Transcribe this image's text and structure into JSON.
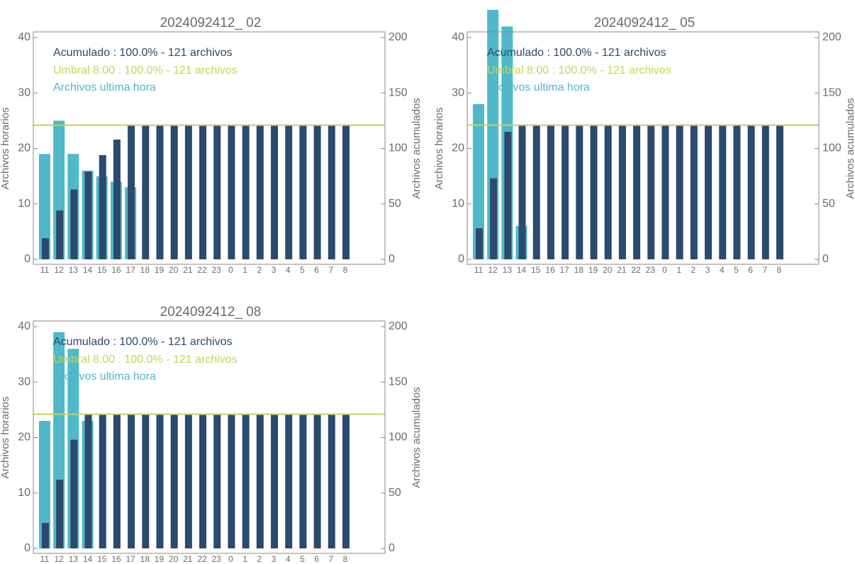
{
  "chart_data": [
    {
      "type": "bar",
      "title": "2024092412_ 02",
      "categories": [
        "11",
        "12",
        "13",
        "14",
        "15",
        "16",
        "17",
        "18",
        "19",
        "20",
        "21",
        "22",
        "23",
        "0",
        "1",
        "2",
        "3",
        "4",
        "5",
        "6",
        "7",
        "8"
      ],
      "series": [
        {
          "name": "Archivos ultima hora",
          "color": "#4fb8c9",
          "values": [
            19,
            25,
            19,
            16,
            15,
            14,
            13,
            0,
            0,
            0,
            0,
            0,
            0,
            0,
            0,
            0,
            0,
            0,
            0,
            0,
            0,
            0
          ]
        },
        {
          "name": "Acumulado : 100.0% - 121 archivos",
          "color": "#2b4a6d",
          "axis": "y2",
          "values": [
            19,
            44,
            63,
            79,
            94,
            108,
            121,
            121,
            121,
            121,
            121,
            121,
            121,
            121,
            121,
            121,
            121,
            121,
            121,
            121,
            121,
            121
          ]
        }
      ],
      "threshold": 121,
      "threshold_label": "Umbral 8:00 : 100.0% - 121 archivos",
      "threshold_color": "#c6d35a",
      "ylabel": "Archivos horarios",
      "y2label": "Archivos acumulados",
      "ylim": [
        0,
        40
      ],
      "yticks": [
        0,
        10,
        20,
        30,
        40
      ],
      "y2lim": [
        0,
        200
      ],
      "y2ticks": [
        0,
        50,
        100,
        150,
        200
      ]
    },
    {
      "type": "bar",
      "title": "2024092412_ 05",
      "categories": [
        "11",
        "12",
        "13",
        "14",
        "15",
        "16",
        "17",
        "18",
        "19",
        "20",
        "21",
        "22",
        "23",
        "0",
        "1",
        "2",
        "3",
        "4",
        "5",
        "6",
        "7",
        "8"
      ],
      "series": [
        {
          "name": "Archivos ultima hora",
          "color": "#4fb8c9",
          "values": [
            28,
            45,
            42,
            6,
            0,
            0,
            0,
            0,
            0,
            0,
            0,
            0,
            0,
            0,
            0,
            0,
            0,
            0,
            0,
            0,
            0,
            0
          ]
        },
        {
          "name": "Acumulado : 100.0% - 121 archivos",
          "color": "#2b4a6d",
          "axis": "y2",
          "values": [
            28,
            73,
            115,
            121,
            121,
            121,
            121,
            121,
            121,
            121,
            121,
            121,
            121,
            121,
            121,
            121,
            121,
            121,
            121,
            121,
            121,
            121
          ]
        }
      ],
      "threshold": 121,
      "threshold_label": "Umbral 8:00 : 100.0% - 121 archivos",
      "threshold_color": "#c6d35a",
      "ylabel": "Archivos horarios",
      "y2label": "Archivos acumulados",
      "ylim": [
        0,
        40
      ],
      "yticks": [
        0,
        10,
        20,
        30,
        40
      ],
      "y2lim": [
        0,
        200
      ],
      "y2ticks": [
        0,
        50,
        100,
        150,
        200
      ]
    },
    {
      "type": "bar",
      "title": "2024092412_ 08",
      "categories": [
        "11",
        "12",
        "13",
        "14",
        "15",
        "16",
        "17",
        "18",
        "19",
        "20",
        "21",
        "22",
        "23",
        "0",
        "1",
        "2",
        "3",
        "4",
        "5",
        "6",
        "7",
        "8"
      ],
      "series": [
        {
          "name": "Archivos ultima hora",
          "color": "#4fb8c9",
          "values": [
            23,
            39,
            36,
            23,
            0,
            0,
            0,
            0,
            0,
            0,
            0,
            0,
            0,
            0,
            0,
            0,
            0,
            0,
            0,
            0,
            0,
            0
          ]
        },
        {
          "name": "Acumulado : 100.0% - 121 archivos",
          "color": "#2b4a6d",
          "axis": "y2",
          "values": [
            23,
            62,
            98,
            121,
            121,
            121,
            121,
            121,
            121,
            121,
            121,
            121,
            121,
            121,
            121,
            121,
            121,
            121,
            121,
            121,
            121,
            121
          ]
        }
      ],
      "threshold": 121,
      "threshold_label": "Umbral 8:00 : 100.0% - 121 archivos",
      "threshold_color": "#c6d35a",
      "ylabel": "Archivos horarios",
      "y2label": "Archivos acumulados",
      "ylim": [
        0,
        40
      ],
      "yticks": [
        0,
        10,
        20,
        30,
        40
      ],
      "y2lim": [
        0,
        200
      ],
      "y2ticks": [
        0,
        50,
        100,
        150,
        200
      ]
    }
  ]
}
